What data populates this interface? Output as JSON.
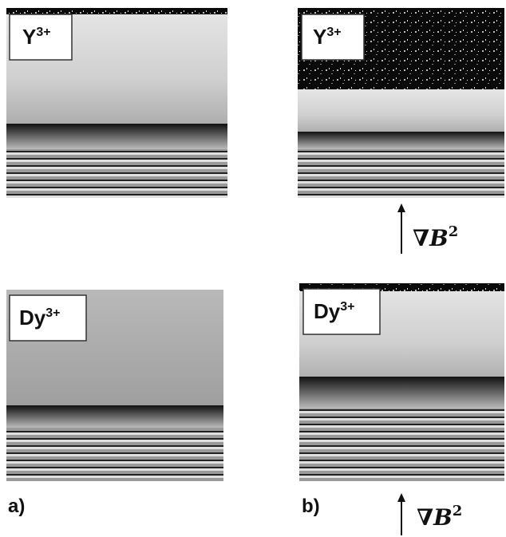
{
  "panels": [
    {
      "ion": "Y",
      "charge": "3+"
    },
    {
      "ion": "Y",
      "charge": "3+"
    },
    {
      "ion": "Dy",
      "charge": "3+"
    },
    {
      "ion": "Dy",
      "charge": "3+"
    }
  ],
  "labels": [
    "a)",
    "b)"
  ],
  "gradient": [
    {
      "symbol": "∇B",
      "exponent": "2"
    },
    {
      "symbol": "∇B",
      "exponent": "2"
    }
  ]
}
